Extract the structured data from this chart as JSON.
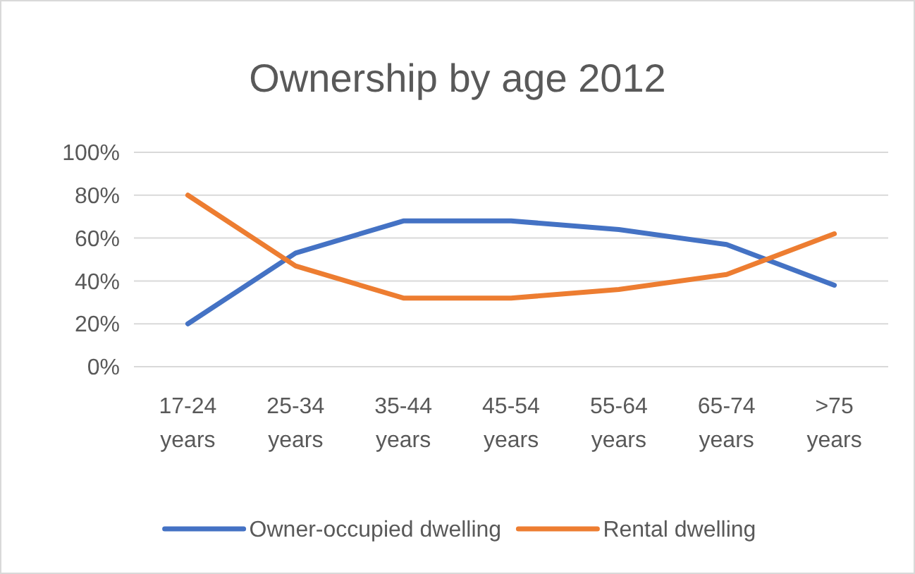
{
  "chart_data": {
    "type": "line",
    "title": "Ownership by age 2012",
    "categories": [
      "17-24 years",
      "25-34 years",
      "35-44 years",
      "45-54 years",
      "55-64 years",
      "65-74 years",
      ">75 years"
    ],
    "series": [
      {
        "name": "Owner-occupied dwelling",
        "color": "#4472c4",
        "values": [
          20,
          53,
          68,
          68,
          64,
          57,
          38
        ]
      },
      {
        "name": "Rental dwelling",
        "color": "#ed7d31",
        "values": [
          80,
          47,
          32,
          32,
          36,
          43,
          62
        ]
      }
    ],
    "ylim": [
      0,
      100
    ],
    "yticks": [
      {
        "value": 0,
        "label": "0%"
      },
      {
        "value": 20,
        "label": "20%"
      },
      {
        "value": 40,
        "label": "40%"
      },
      {
        "value": 60,
        "label": "60%"
      },
      {
        "value": 80,
        "label": "80%"
      },
      {
        "value": 100,
        "label": "100%"
      }
    ],
    "grid": "y",
    "legend": "bottom",
    "marker": "none",
    "line_style": "solid"
  }
}
